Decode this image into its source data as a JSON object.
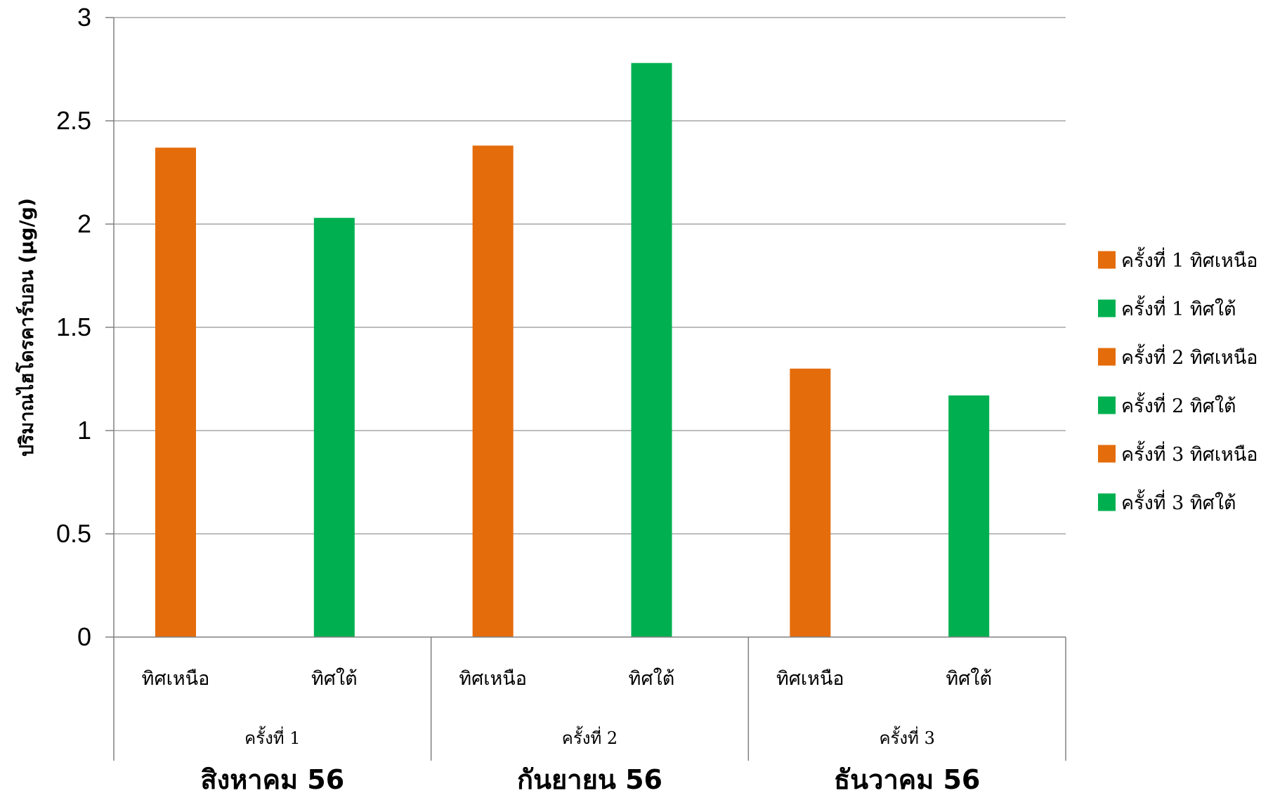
{
  "chart_data": {
    "type": "bar",
    "ylabel": "ปริมาณไฮโดรคาร์บอน (μg/g)",
    "ylim": [
      0,
      3
    ],
    "yticks": [
      "0",
      "0.5",
      "1",
      "1.5",
      "2",
      "2.5",
      "3"
    ],
    "grid": true,
    "legend_position": "right",
    "colors": {
      "north": "#E46C0A",
      "south": "#00B050"
    },
    "groups": [
      {
        "month": "สิงหาคม 56",
        "round": "ครั้งที่ 1"
      },
      {
        "month": "กันยายน 56",
        "round": "ครั้งที่ 2"
      },
      {
        "month": "ธันวาคม 56",
        "round": "ครั้งที่ 3"
      }
    ],
    "categories": [
      "ทิศเหนือ",
      "ทิศใต้",
      "ทิศเหนือ",
      "ทิศใต้",
      "ทิศเหนือ",
      "ทิศใต้"
    ],
    "series": [
      {
        "name": "ครั้งที่ 1 ทิศเหนือ",
        "color": "#E46C0A",
        "category_index": 0,
        "value": 2.37
      },
      {
        "name": "ครั้งที่ 1 ทิศใต้",
        "color": "#00B050",
        "category_index": 1,
        "value": 2.03
      },
      {
        "name": "ครั้งที่ 2 ทิศเหนือ",
        "color": "#E46C0A",
        "category_index": 2,
        "value": 2.38
      },
      {
        "name": "ครั้งที่ 2 ทิศใต้",
        "color": "#00B050",
        "category_index": 3,
        "value": 2.78
      },
      {
        "name": "ครั้งที่ 3 ทิศเหนือ",
        "color": "#E46C0A",
        "category_index": 4,
        "value": 1.3
      },
      {
        "name": "ครั้งที่ 3 ทิศใต้",
        "color": "#00B050",
        "category_index": 5,
        "value": 1.17
      }
    ]
  }
}
